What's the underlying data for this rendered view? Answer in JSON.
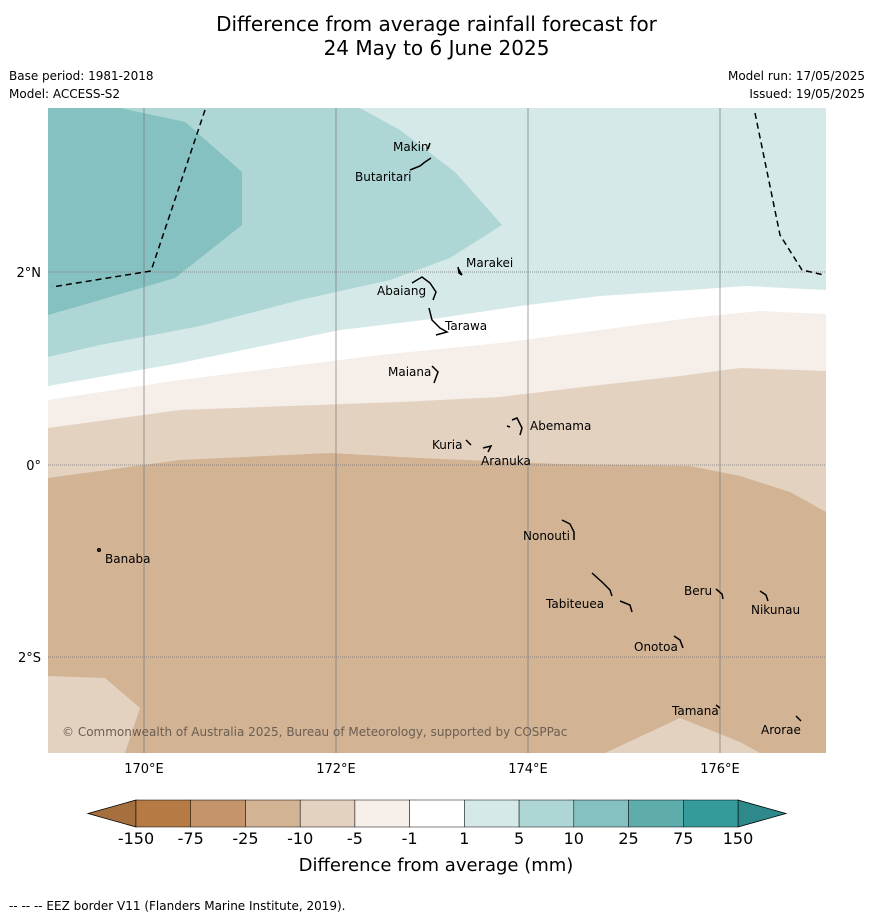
{
  "title_line1": "Difference from average rainfall forecast for",
  "title_line2": "24 May to 6 June 2025",
  "info": {
    "base_period": "Base period: 1981-2018",
    "model": "Model: ACCESS-S2",
    "model_run": "Model run: 17/05/2025",
    "issued": "Issued: 19/05/2025"
  },
  "axes": {
    "lon_labels": [
      "170°E",
      "172°E",
      "174°E",
      "176°E"
    ],
    "lat_labels": [
      "2°N",
      "0°",
      "2°S"
    ]
  },
  "places": [
    "Makin",
    "Butaritari",
    "Marakei",
    "Abaiang",
    "Tarawa",
    "Maiana",
    "Abemama",
    "Kuria",
    "Aranuka",
    "Nonouti",
    "Banaba",
    "Beru",
    "Nikunau",
    "Tabiteuea",
    "Onotoa",
    "Tamana",
    "Arorae"
  ],
  "copyright": "© Commonwealth of Australia 2025, Bureau of Meteorology, supported by COSPPac",
  "colorbar": {
    "title": "Difference from average (mm)",
    "tick_labels": [
      "-150",
      "-75",
      "-25",
      "-10",
      "-5",
      "-1",
      "1",
      "5",
      "10",
      "25",
      "75",
      "150"
    ],
    "colors": [
      "#a5703e",
      "#b67b45",
      "#c4946a",
      "#d2b394",
      "#e4d2c1",
      "#f5eee9",
      "#ffffff",
      "#d5e9e8",
      "#aed6d5",
      "#85c1c0",
      "#5eadac",
      "#349b9a",
      "#2e8a8a"
    ]
  },
  "footer": "--  --  -- EEZ border V11 (Flanders Marine Institute, 2019)."
}
